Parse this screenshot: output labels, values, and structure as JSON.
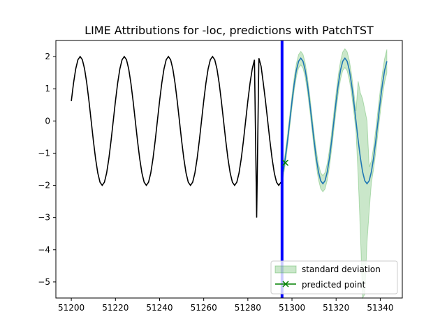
{
  "chart_data": {
    "type": "line",
    "title": "LIME Attributions for -loc, predictions with PatchTST",
    "xlabel": "",
    "ylabel": "",
    "xlim": [
      51193,
      51350
    ],
    "ylim": [
      -5.5,
      2.5
    ],
    "xticks": [
      51200,
      51220,
      51240,
      51260,
      51280,
      51300,
      51320,
      51340
    ],
    "yticks": [
      -5,
      -4,
      -3,
      -2,
      -1,
      0,
      1,
      2
    ],
    "grid": false,
    "legend_position": "lower-right",
    "legend": {
      "std_label": "standard deviation",
      "pred_label": "predicted point"
    },
    "colors": {
      "history": "#000000",
      "prediction_line": "#1f77b4",
      "band": "#2ca02c",
      "marker": "#008000",
      "cutoff": "#0000ff"
    },
    "history": {
      "x_start": 51200,
      "x_end": 51295,
      "period": 20,
      "amplitude": 2,
      "phase_x": 51199,
      "anomaly": [
        [
          51283,
          1.9
        ],
        [
          51284,
          -3.0
        ],
        [
          51285,
          1.95
        ],
        [
          51286,
          1.7
        ]
      ]
    },
    "cutoff_x": 51295.5,
    "prediction": {
      "x_start": 51296,
      "x_end": 51343,
      "period": 20,
      "amplitude": 1.95,
      "phase_x": 51299
    },
    "std_band": {
      "base_width": 0.18,
      "wide_region": [
        [
          51330,
          0.8
        ],
        [
          51331,
          2.0
        ],
        [
          51332,
          3.6
        ],
        [
          51333,
          3.2
        ],
        [
          51334,
          1.5
        ],
        [
          51335,
          0.6
        ]
      ]
    },
    "predicted_point": {
      "x": 51297,
      "y": -1.3
    }
  }
}
